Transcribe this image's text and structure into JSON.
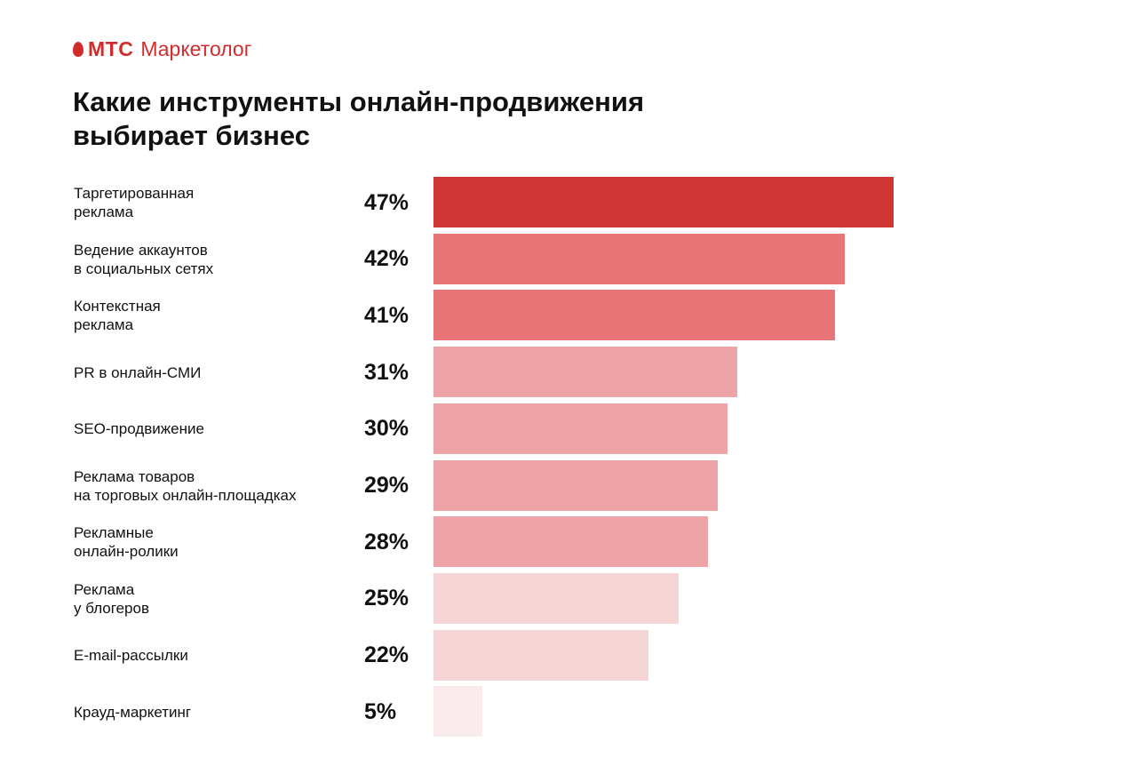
{
  "logo": {
    "brand": "МТС",
    "product": "Маркетолог"
  },
  "chart_data": {
    "type": "bar",
    "orientation": "horizontal",
    "title": "Какие инструменты онлайн-продвижения выбирает бизнес",
    "categories": [
      "Таргетированная\nреклама",
      "Ведение аккаунтов\nв социальных сетях",
      "Контекстная\nреклама",
      "PR в онлайн-СМИ",
      "SEO-продвижение",
      "Реклама товаров\nна торговых онлайн-площадках",
      "Рекламные\nонлайн-ролики",
      "Реклама\nу блогеров",
      "E-mail-рассылки",
      "Крауд-маркетинг"
    ],
    "values": [
      47,
      42,
      41,
      31,
      30,
      29,
      28,
      25,
      22,
      5
    ],
    "value_labels": [
      "47%",
      "42%",
      "41%",
      "31%",
      "30%",
      "29%",
      "28%",
      "25%",
      "22%",
      "5%"
    ],
    "colors": [
      "#d03734",
      "#e87478",
      "#e87478",
      "#eea3a6",
      "#eea3a6",
      "#eea3a6",
      "#eea3a6",
      "#f5d4d6",
      "#f5d4d6",
      "#f9ebeb"
    ],
    "xlim": [
      0,
      47
    ],
    "grid": false
  }
}
